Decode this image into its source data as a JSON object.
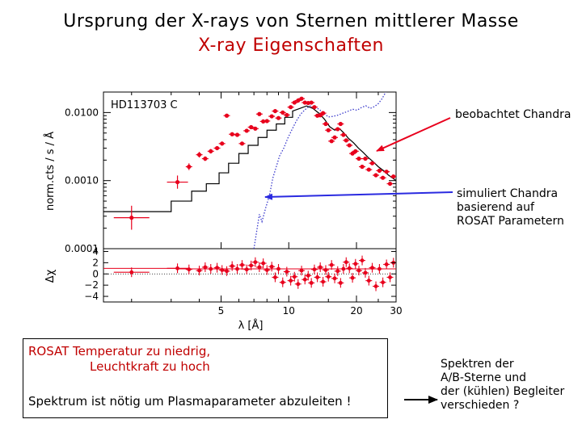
{
  "titles": {
    "line1": "Ursprung der X-rays von Sternen mittlerer Masse",
    "line2": "X-ray Eigenschaften"
  },
  "annotations": {
    "observed": "beobachtet Chandra",
    "simulated_lines": [
      "simuliert Chandra",
      "basierend auf",
      "ROSAT Parametern"
    ]
  },
  "box": {
    "line1": "ROSAT Temperatur zu niedrig,",
    "line2": "Leuchtkraft zu hoch",
    "line3": "Spektrum ist nötig um Plasmaparameter abzuleiten !"
  },
  "right_note_lines": [
    "Spektren der",
    "A/B-Sterne und",
    "der (kühlen) Begleiter",
    "verschieden ?"
  ],
  "colors": {
    "title": "#000000",
    "subtitle": "#c00000",
    "data": "#e8001c",
    "model": "#000000",
    "simulation": "#3a3acc",
    "arrows": "#e8001c",
    "arrow_sim": "#2a2ae0"
  },
  "chart_data": {
    "type": "scatter",
    "title": "HD113703 C",
    "xlabel": "λ [Å]",
    "x_scale": "log",
    "xlim": [
      1.5,
      30
    ],
    "x_ticks": [
      5,
      10,
      20,
      30
    ],
    "top_panel": {
      "ylabel": "norm.cts / s / Å",
      "y_scale": "log",
      "ylim": [
        0.0001,
        0.02
      ],
      "y_ticks": [
        "0.0001",
        "0.0010",
        "0.0100"
      ],
      "series": [
        {
          "kind": "data",
          "points": [
            [
              2.0,
              0.000285,
              0.5
            ],
            [
              3.2,
              0.00095,
              0.25
            ],
            [
              3.6,
              0.0016,
              0.12
            ],
            [
              4.0,
              0.0024,
              0.1
            ],
            [
              4.25,
              0.0021,
              0.08
            ],
            [
              4.5,
              0.0027,
              0.08
            ],
            [
              4.8,
              0.003,
              0.07
            ],
            [
              5.05,
              0.0035,
              0.07
            ],
            [
              5.3,
              0.009,
              0.06
            ],
            [
              5.6,
              0.0048,
              0.06
            ],
            [
              5.9,
              0.0047,
              0.06
            ],
            [
              6.2,
              0.0035,
              0.06
            ],
            [
              6.5,
              0.0054,
              0.06
            ],
            [
              6.8,
              0.0061,
              0.06
            ],
            [
              7.1,
              0.0058,
              0.06
            ],
            [
              7.4,
              0.0095,
              0.06
            ],
            [
              7.7,
              0.0074,
              0.06
            ],
            [
              8.0,
              0.0075,
              0.06
            ],
            [
              8.4,
              0.0088,
              0.06
            ],
            [
              8.7,
              0.0105,
              0.06
            ],
            [
              9.0,
              0.0083,
              0.06
            ],
            [
              9.4,
              0.01,
              0.06
            ],
            [
              9.8,
              0.0092,
              0.06
            ],
            [
              10.2,
              0.012,
              0.06
            ],
            [
              10.6,
              0.014,
              0.06
            ],
            [
              11.0,
              0.015,
              0.06
            ],
            [
              11.4,
              0.016,
              0.06
            ],
            [
              11.8,
              0.014,
              0.06
            ],
            [
              12.2,
              0.0138,
              0.06
            ],
            [
              12.6,
              0.014,
              0.06
            ],
            [
              13.0,
              0.012,
              0.06
            ],
            [
              13.4,
              0.009,
              0.06
            ],
            [
              13.8,
              0.0091,
              0.06
            ],
            [
              14.2,
              0.0098,
              0.06
            ],
            [
              14.6,
              0.0068,
              0.06
            ],
            [
              15.0,
              0.0055,
              0.06
            ],
            [
              15.5,
              0.0038,
              0.06
            ],
            [
              16.0,
              0.0043,
              0.06
            ],
            [
              16.5,
              0.0057,
              0.06
            ],
            [
              17.0,
              0.0068,
              0.06
            ],
            [
              17.5,
              0.0047,
              0.06
            ],
            [
              18.0,
              0.0039,
              0.06
            ],
            [
              18.6,
              0.0033,
              0.06
            ],
            [
              19.2,
              0.0025,
              0.06
            ],
            [
              19.8,
              0.0027,
              0.06
            ],
            [
              20.5,
              0.0021,
              0.06
            ],
            [
              21.2,
              0.0016,
              0.06
            ],
            [
              21.9,
              0.0021,
              0.06
            ],
            [
              22.7,
              0.00145,
              0.06
            ],
            [
              23.5,
              0.0018,
              0.06
            ],
            [
              24.4,
              0.0012,
              0.06
            ],
            [
              25.3,
              0.0014,
              0.06
            ],
            [
              26.2,
              0.0011,
              0.06
            ],
            [
              27.2,
              0.00135,
              0.06
            ],
            [
              28.2,
              0.0009,
              0.06
            ],
            [
              29.2,
              0.00115,
              0.06
            ]
          ]
        },
        {
          "kind": "model",
          "points": [
            [
              1.5,
              0.00035
            ],
            [
              3.0,
              0.00035
            ],
            [
              3.0,
              0.0005
            ],
            [
              3.7,
              0.0005
            ],
            [
              3.7,
              0.0007
            ],
            [
              4.3,
              0.0007
            ],
            [
              4.3,
              0.0009
            ],
            [
              4.9,
              0.0009
            ],
            [
              4.9,
              0.0013
            ],
            [
              5.4,
              0.0013
            ],
            [
              5.4,
              0.0018
            ],
            [
              6.0,
              0.0018
            ],
            [
              6.0,
              0.0025
            ],
            [
              6.6,
              0.0025
            ],
            [
              6.6,
              0.0033
            ],
            [
              7.3,
              0.0033
            ],
            [
              7.3,
              0.0043
            ],
            [
              8.0,
              0.0043
            ],
            [
              8.0,
              0.0055
            ],
            [
              8.8,
              0.0055
            ],
            [
              8.8,
              0.0068
            ],
            [
              9.6,
              0.0068
            ],
            [
              9.6,
              0.0085
            ],
            [
              10.4,
              0.0085
            ],
            [
              10.4,
              0.0105
            ],
            [
              11.2,
              0.0115
            ],
            [
              12.0,
              0.0125
            ],
            [
              12.8,
              0.0115
            ],
            [
              13.6,
              0.0098
            ],
            [
              14.4,
              0.008
            ],
            [
              15.2,
              0.0062
            ],
            [
              16.0,
              0.0055
            ],
            [
              16.8,
              0.0058
            ],
            [
              17.6,
              0.005
            ],
            [
              18.4,
              0.0042
            ],
            [
              19.4,
              0.0036
            ],
            [
              20.4,
              0.003
            ],
            [
              21.4,
              0.0026
            ],
            [
              22.5,
              0.0022
            ],
            [
              23.7,
              0.0019
            ],
            [
              25.0,
              0.0016
            ],
            [
              26.4,
              0.0014
            ],
            [
              27.8,
              0.0012
            ],
            [
              30.0,
              0.001
            ]
          ]
        },
        {
          "kind": "simulation",
          "points": [
            [
              7.0,
              0.0001
            ],
            [
              7.2,
              0.00018
            ],
            [
              7.4,
              0.00032
            ],
            [
              7.6,
              0.00025
            ],
            [
              7.9,
              0.0004
            ],
            [
              8.2,
              0.0006
            ],
            [
              8.5,
              0.0011
            ],
            [
              8.8,
              0.0016
            ],
            [
              9.1,
              0.0023
            ],
            [
              9.5,
              0.003
            ],
            [
              9.9,
              0.0042
            ],
            [
              10.3,
              0.0055
            ],
            [
              10.8,
              0.0075
            ],
            [
              11.3,
              0.0095
            ],
            [
              11.8,
              0.011
            ],
            [
              12.4,
              0.0125
            ],
            [
              13.0,
              0.0122
            ],
            [
              13.6,
              0.0112
            ],
            [
              14.3,
              0.0098
            ],
            [
              15.0,
              0.0086
            ],
            [
              15.8,
              0.0088
            ],
            [
              16.6,
              0.0092
            ],
            [
              17.4,
              0.0098
            ],
            [
              18.3,
              0.0104
            ],
            [
              19.2,
              0.0112
            ],
            [
              20.1,
              0.0108
            ],
            [
              21.0,
              0.0118
            ],
            [
              22.0,
              0.0126
            ],
            [
              23.0,
              0.0115
            ],
            [
              24.0,
              0.0122
            ],
            [
              25.0,
              0.0135
            ],
            [
              26.0,
              0.016
            ],
            [
              27.0,
              0.02
            ]
          ]
        }
      ]
    },
    "bottom_panel": {
      "ylabel": "Δχ",
      "ylim": [
        -5,
        4.5
      ],
      "y_ticks": [
        4,
        2,
        0,
        -2,
        -4
      ],
      "residuals": [
        [
          2.0,
          0.3
        ],
        [
          3.2,
          1.0
        ],
        [
          3.6,
          0.8
        ],
        [
          4.0,
          0.6
        ],
        [
          4.25,
          1.2
        ],
        [
          4.5,
          0.9
        ],
        [
          4.8,
          1.1
        ],
        [
          5.05,
          0.7
        ],
        [
          5.3,
          0.5
        ],
        [
          5.6,
          1.4
        ],
        [
          5.9,
          0.9
        ],
        [
          6.2,
          1.6
        ],
        [
          6.5,
          0.8
        ],
        [
          6.8,
          1.5
        ],
        [
          7.1,
          2.1
        ],
        [
          7.4,
          1.2
        ],
        [
          7.7,
          1.9
        ],
        [
          8.0,
          0.7
        ],
        [
          8.4,
          1.3
        ],
        [
          8.7,
          -0.6
        ],
        [
          9.0,
          0.9
        ],
        [
          9.4,
          -1.5
        ],
        [
          9.8,
          0.4
        ],
        [
          10.2,
          -1.2
        ],
        [
          10.6,
          -0.5
        ],
        [
          11.0,
          -1.8
        ],
        [
          11.4,
          0.6
        ],
        [
          11.8,
          -1.0
        ],
        [
          12.2,
          -0.3
        ],
        [
          12.6,
          -1.6
        ],
        [
          13.0,
          0.8
        ],
        [
          13.4,
          -0.6
        ],
        [
          13.8,
          1.2
        ],
        [
          14.2,
          -1.4
        ],
        [
          14.6,
          0.7
        ],
        [
          15.0,
          -0.5
        ],
        [
          15.5,
          1.6
        ],
        [
          16.0,
          -0.8
        ],
        [
          16.5,
          0.5
        ],
        [
          17.0,
          -1.6
        ],
        [
          17.5,
          0.9
        ],
        [
          18.0,
          2.1
        ],
        [
          18.6,
          1.0
        ],
        [
          19.2,
          -0.7
        ],
        [
          19.8,
          1.8
        ],
        [
          20.5,
          0.6
        ],
        [
          21.2,
          2.4
        ],
        [
          21.9,
          0.2
        ],
        [
          22.7,
          -1.2
        ],
        [
          23.5,
          1.1
        ],
        [
          24.4,
          -2.2
        ],
        [
          25.3,
          0.9
        ],
        [
          26.2,
          -1.5
        ],
        [
          27.2,
          1.7
        ],
        [
          28.2,
          -0.6
        ],
        [
          29.2,
          2.0
        ]
      ]
    }
  }
}
